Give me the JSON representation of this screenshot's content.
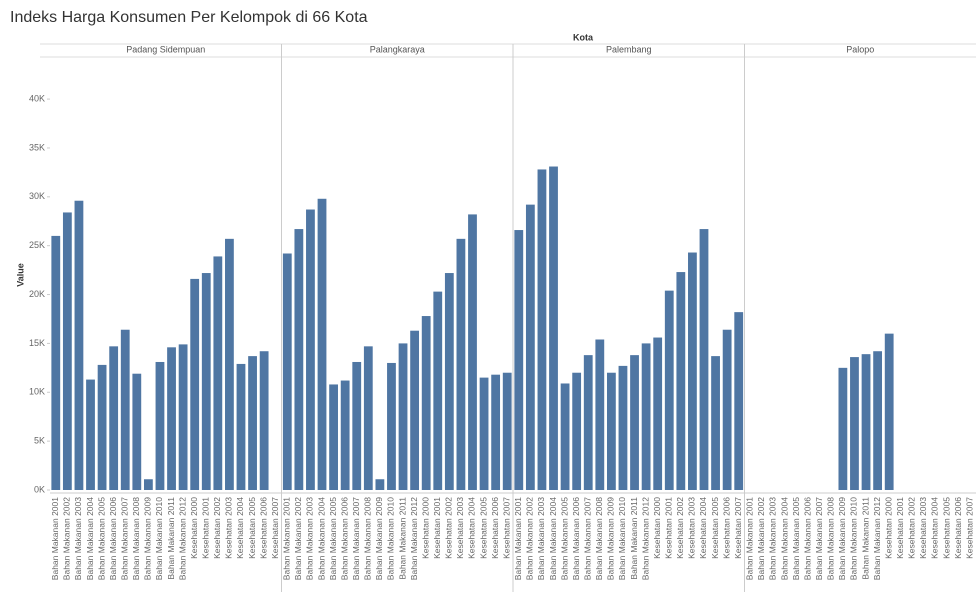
{
  "title": "Indeks Harga Konsumen Per Kelompok di 66 Kota",
  "column_header": "Kota",
  "y_label": "Value",
  "chart_data": [
    {
      "type": "bar",
      "title": "Padang Sidempuan",
      "color": "#4f76a3",
      "categories": [
        "Bahan Makanan 2001",
        "Bahan Makanan 2002",
        "Bahan Makanan 2003",
        "Bahan Makanan 2004",
        "Bahan Makanan 2005",
        "Bahan Makanan 2006",
        "Bahan Makanan 2007",
        "Bahan Makanan 2008",
        "Bahan Makanan 2009",
        "Bahan Makanan 2010",
        "Bahan Makanan 2011",
        "Bahan Makanan 2012",
        "Kesehatan 2000",
        "Kesehatan 2001",
        "Kesehatan 2002",
        "Kesehatan 2003",
        "Kesehatan 2004",
        "Kesehatan 2005",
        "Kesehatan 2006",
        "Kesehatan 2007"
      ],
      "values": [
        26000,
        28400,
        29600,
        11300,
        12800,
        14700,
        16400,
        11900,
        1100,
        13100,
        14600,
        14900,
        21600,
        22200,
        23900,
        25700,
        12900,
        13700,
        14200,
        null
      ],
      "ylim": [
        0,
        44000
      ],
      "yticks": [
        {
          "value": 0,
          "label": "0K"
        },
        {
          "value": 5000,
          "label": "5K"
        },
        {
          "value": 10000,
          "label": "10K"
        },
        {
          "value": 15000,
          "label": "15K"
        },
        {
          "value": 20000,
          "label": "20K"
        },
        {
          "value": 25000,
          "label": "25K"
        },
        {
          "value": 30000,
          "label": "30K"
        },
        {
          "value": 35000,
          "label": "35K"
        },
        {
          "value": 40000,
          "label": "40K"
        }
      ]
    },
    {
      "type": "bar",
      "title": "Palangkaraya",
      "color": "#4f76a3",
      "categories": [
        "Bahan Makanan 2001",
        "Bahan Makanan 2002",
        "Bahan Makanan 2003",
        "Bahan Makanan 2004",
        "Bahan Makanan 2005",
        "Bahan Makanan 2006",
        "Bahan Makanan 2007",
        "Bahan Makanan 2008",
        "Bahan Makanan 2009",
        "Bahan Makanan 2010",
        "Bahan Makanan 2011",
        "Bahan Makanan 2012",
        "Kesehatan 2000",
        "Kesehatan 2001",
        "Kesehatan 2002",
        "Kesehatan 2003",
        "Kesehatan 2004",
        "Kesehatan 2005",
        "Kesehatan 2006",
        "Kesehatan 2007"
      ],
      "values": [
        24200,
        26700,
        28700,
        29800,
        10800,
        11200,
        13100,
        14700,
        1100,
        13000,
        15000,
        16300,
        17800,
        20300,
        22200,
        25700,
        28200,
        11500,
        11800,
        12000
      ],
      "ylim": [
        0,
        44000
      ]
    },
    {
      "type": "bar",
      "title": "Palembang",
      "color": "#4f76a3",
      "categories": [
        "Bahan Makanan 2001",
        "Bahan Makanan 2002",
        "Bahan Makanan 2003",
        "Bahan Makanan 2004",
        "Bahan Makanan 2005",
        "Bahan Makanan 2006",
        "Bahan Makanan 2007",
        "Bahan Makanan 2008",
        "Bahan Makanan 2009",
        "Bahan Makanan 2010",
        "Bahan Makanan 2011",
        "Bahan Makanan 2012",
        "Kesehatan 2000",
        "Kesehatan 2001",
        "Kesehatan 2002",
        "Kesehatan 2003",
        "Kesehatan 2004",
        "Kesehatan 2005",
        "Kesehatan 2006",
        "Kesehatan 2007"
      ],
      "values": [
        26600,
        29200,
        32800,
        33100,
        10900,
        12000,
        13800,
        15400,
        12000,
        12700,
        13800,
        15000,
        15600,
        20400,
        22300,
        24300,
        26700,
        13700,
        16400,
        18200
      ],
      "ylim": [
        0,
        44000
      ]
    },
    {
      "type": "bar",
      "title": "Palopo",
      "color": "#4f76a3",
      "categories": [
        "Bahan Makanan 2001",
        "Bahan Makanan 2002",
        "Bahan Makanan 2003",
        "Bahan Makanan 2004",
        "Bahan Makanan 2005",
        "Bahan Makanan 2006",
        "Bahan Makanan 2007",
        "Bahan Makanan 2008",
        "Bahan Makanan 2009",
        "Bahan Makanan 2010",
        "Bahan Makanan 2011",
        "Bahan Makanan 2012",
        "Kesehatan 2000",
        "Kesehatan 2001",
        "Kesehatan 2002",
        "Kesehatan 2003",
        "Kesehatan 2004",
        "Kesehatan 2005",
        "Kesehatan 2006",
        "Kesehatan 2007"
      ],
      "values": [
        null,
        null,
        null,
        null,
        null,
        null,
        null,
        null,
        12500,
        13600,
        13900,
        14200,
        16000,
        null,
        null,
        null,
        null,
        null,
        null,
        null
      ],
      "ylim": [
        0,
        44000
      ]
    }
  ]
}
